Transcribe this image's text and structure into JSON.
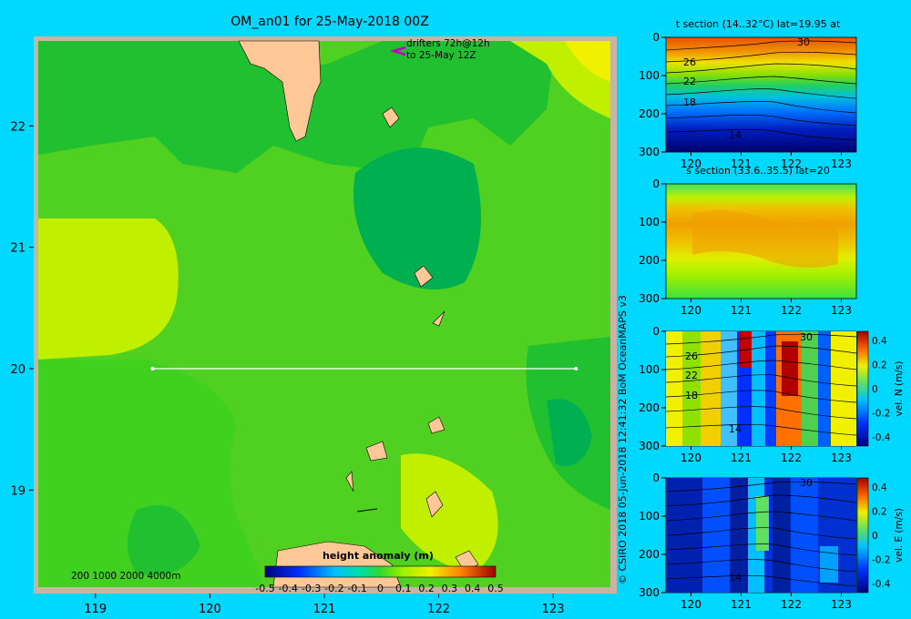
{
  "main_map": {
    "title": "OM_an01 for 25-May-2018 00Z",
    "drifter_note_line1": "drifters 72h@12h",
    "drifter_note_line2": "to 25-May 12Z",
    "depth_legend": "200  1000  2000  4000m",
    "colorbar_title": "height anomaly (m)",
    "colorbar_ticks": [
      "-0.5",
      "-0.4",
      "-0.3",
      "-0.2",
      "-0.1",
      "0",
      "0.1",
      "0.2",
      "0.3",
      "0.4",
      "0.5"
    ],
    "x_ticks": [
      "119",
      "120",
      "121",
      "122",
      "123"
    ],
    "y_ticks": [
      "22",
      "21",
      "20",
      "19"
    ]
  },
  "credit": "© CSIRO 2018   05-Jun-2018 12:41:32 BoM OceanMAPS v3",
  "panels": [
    {
      "title": "t section (14..32°C) lat=19.95 at",
      "y_ticks": [
        "0",
        "100",
        "200",
        "300"
      ],
      "x_ticks": [
        "120",
        "121",
        "122",
        "123"
      ],
      "contour_labels": [
        "30",
        "26",
        "22",
        "18",
        "14"
      ]
    },
    {
      "title": "s section (33.6..35.5) lat=20",
      "y_ticks": [
        "0",
        "100",
        "200",
        "300"
      ],
      "x_ticks": [
        "120",
        "121",
        "122",
        "123"
      ]
    },
    {
      "colorbar_label": "vel. N (m/s)",
      "y_ticks": [
        "0",
        "100",
        "200",
        "300"
      ],
      "x_ticks": [
        "120",
        "121",
        "122",
        "123"
      ],
      "colorbar_ticks": [
        "0.4",
        "0.2",
        "0",
        "-0.2",
        "-0.4"
      ],
      "contour_labels": [
        "26",
        "22",
        "18",
        "14",
        "30"
      ]
    },
    {
      "colorbar_label": "vel. E (m/s)",
      "y_ticks": [
        "0",
        "100",
        "200",
        "300"
      ],
      "x_ticks": [
        "120",
        "121",
        "122",
        "123"
      ],
      "colorbar_ticks": [
        "0.4",
        "0.2",
        "0",
        "-0.2",
        "-0.4"
      ],
      "contour_labels": [
        "30",
        "14"
      ]
    }
  ],
  "colors": {
    "background": "#00d8ff",
    "land": "#ffc896",
    "shallow": "#c8b4a0",
    "anomaly_low": "#00aa50",
    "anomaly_mid": "#66e000",
    "anomaly_high": "#d8f000",
    "drifter": "#c000c0"
  },
  "chart_data": [
    {
      "type": "heatmap",
      "title": "OM_an01 for 25-May-2018 00Z",
      "variable": "height anomaly (m)",
      "xlim": [
        118.5,
        123.5
      ],
      "ylim": [
        18.2,
        22.7
      ],
      "x_ticks": [
        119,
        120,
        121,
        122,
        123
      ],
      "y_ticks": [
        19,
        20,
        21,
        22
      ],
      "colorbar_range": [
        -0.5,
        0.5
      ],
      "section_line": {
        "lat": 20.0,
        "lon_start": 119.5,
        "lon_end": 123.2
      }
    },
    {
      "type": "heatmap",
      "title": "t section (14..32°C) lat=19.95 at",
      "xlim": [
        119.5,
        123.3
      ],
      "ylim": [
        300,
        0
      ],
      "contour_levels": [
        30,
        26,
        22,
        18,
        14
      ]
    },
    {
      "type": "heatmap",
      "title": "s section (33.6..35.5) lat=20",
      "xlim": [
        119.5,
        123.3
      ],
      "ylim": [
        300,
        0
      ]
    },
    {
      "type": "heatmap",
      "variable": "vel. N (m/s)",
      "xlim": [
        119.5,
        123.3
      ],
      "ylim": [
        300,
        0
      ],
      "colorbar_range": [
        -0.4,
        0.4
      ]
    },
    {
      "type": "heatmap",
      "variable": "vel. E (m/s)",
      "xlim": [
        119.5,
        123.3
      ],
      "ylim": [
        300,
        0
      ],
      "colorbar_range": [
        -0.4,
        0.4
      ]
    }
  ]
}
